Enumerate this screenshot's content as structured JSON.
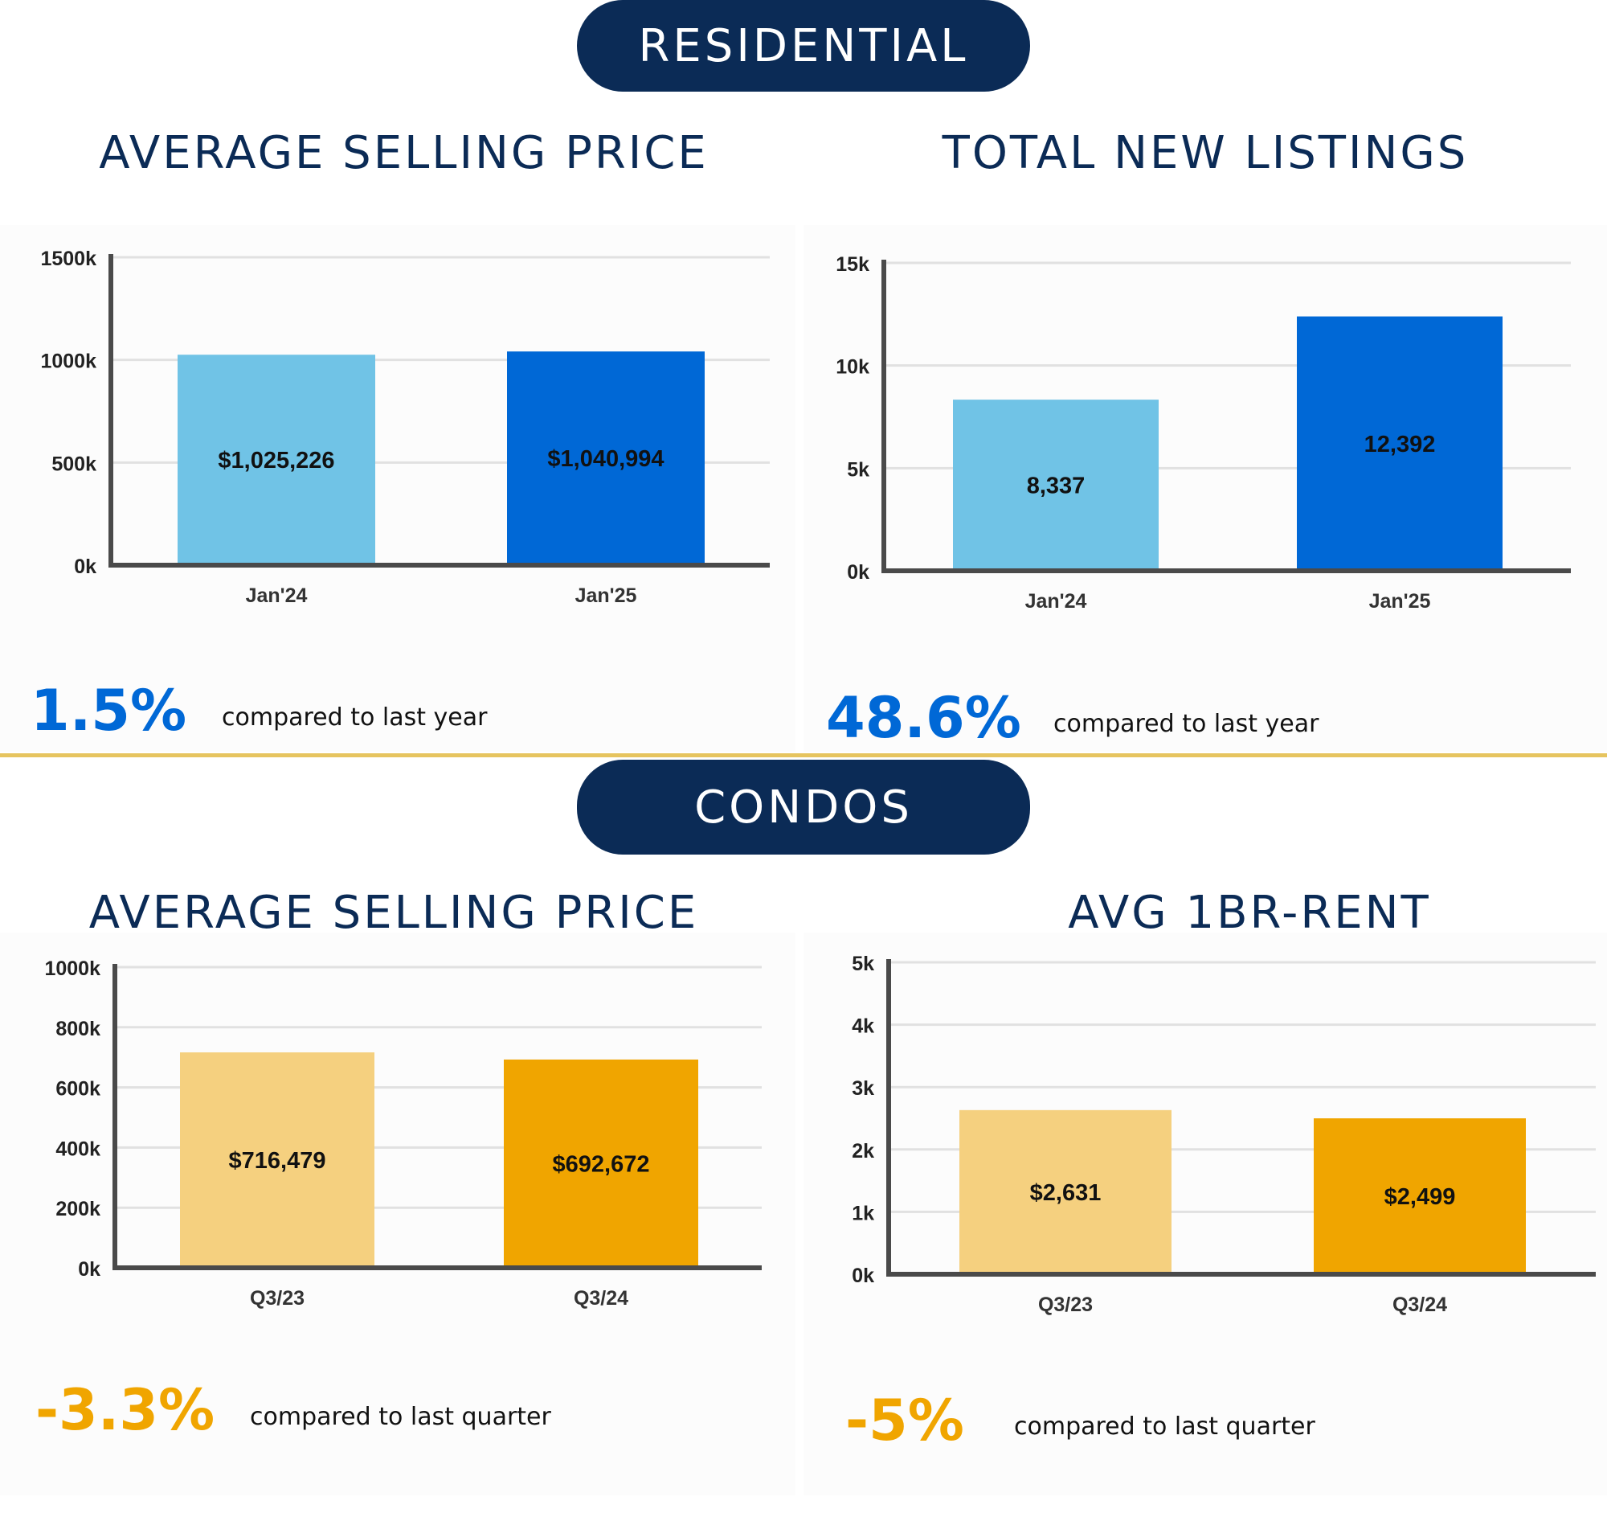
{
  "sections": {
    "residential_label": "RESIDENTIAL",
    "condos_label": "CONDOS"
  },
  "colors": {
    "navy": "#0b2b56",
    "blue_light": "#70c3e6",
    "blue_dark": "#0068d6",
    "gold_light": "#f5d07f",
    "gold_dark": "#f0a500",
    "divider": "#e6c45f",
    "axis": "#4a4a4a",
    "grid": "#e1e1e1"
  },
  "panels": [
    {
      "title": "AVERAGE SELLING PRICE",
      "change": "1.5%",
      "change_color": "#0068d6",
      "note": "compared to last year",
      "chart_data": {
        "type": "bar",
        "categories": [
          "Jan'24",
          "Jan'25"
        ],
        "values": [
          1025226,
          1040994
        ],
        "data_labels": [
          "$1,025,226",
          "$1,040,994"
        ],
        "bar_colors": [
          "#70c3e6",
          "#0068d6"
        ],
        "ylim": [
          0,
          1500000
        ],
        "yticks": [
          0,
          500000,
          1000000,
          1500000
        ],
        "ytick_labels": [
          "0k",
          "500k",
          "1000k",
          "1500k"
        ],
        "title": "",
        "xlabel": "",
        "ylabel": "",
        "grid": true
      }
    },
    {
      "title": "TOTAL NEW LISTINGS",
      "change": "48.6%",
      "change_color": "#0068d6",
      "note": "compared to last year",
      "chart_data": {
        "type": "bar",
        "categories": [
          "Jan'24",
          "Jan'25"
        ],
        "values": [
          8337,
          12392
        ],
        "data_labels": [
          "8,337",
          "12,392"
        ],
        "bar_colors": [
          "#70c3e6",
          "#0068d6"
        ],
        "ylim": [
          0,
          15000
        ],
        "yticks": [
          0,
          5000,
          10000,
          15000
        ],
        "ytick_labels": [
          "0k",
          "5k",
          "10k",
          "15k"
        ],
        "title": "",
        "xlabel": "",
        "ylabel": "",
        "grid": true
      }
    },
    {
      "title": "AVERAGE SELLING PRICE",
      "change": "-3.3%",
      "change_color": "#f0a500",
      "note": "compared to last quarter",
      "chart_data": {
        "type": "bar",
        "categories": [
          "Q3/23",
          "Q3/24"
        ],
        "values": [
          716479,
          692672
        ],
        "data_labels": [
          "$716,479",
          "$692,672"
        ],
        "bar_colors": [
          "#f5d07f",
          "#f0a500"
        ],
        "ylim": [
          0,
          1000000
        ],
        "yticks": [
          0,
          200000,
          400000,
          600000,
          800000,
          1000000
        ],
        "ytick_labels": [
          "0k",
          "200k",
          "400k",
          "600k",
          "800k",
          "1000k"
        ],
        "title": "",
        "xlabel": "",
        "ylabel": "",
        "grid": true
      }
    },
    {
      "title": "AVG 1BR-RENT",
      "change": "-5%",
      "change_color": "#f0a500",
      "note": "compared to last quarter",
      "chart_data": {
        "type": "bar",
        "categories": [
          "Q3/23",
          "Q3/24"
        ],
        "values": [
          2631,
          2499
        ],
        "data_labels": [
          "$2,631",
          "$2,499"
        ],
        "bar_colors": [
          "#f5d07f",
          "#f0a500"
        ],
        "ylim": [
          0,
          5000
        ],
        "yticks": [
          0,
          1000,
          2000,
          3000,
          4000,
          5000
        ],
        "ytick_labels": [
          "0k",
          "1k",
          "2k",
          "3k",
          "4k",
          "5k"
        ],
        "title": "",
        "xlabel": "",
        "ylabel": "",
        "grid": true
      }
    }
  ]
}
